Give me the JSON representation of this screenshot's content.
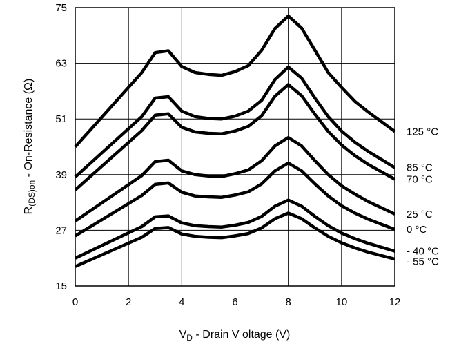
{
  "chart_data": {
    "type": "line",
    "title": "",
    "xlabel": {
      "main": "V",
      "sub": "D",
      "rest": " - Drain V oltage (V)"
    },
    "ylabel": {
      "main": "R",
      "sub": "(DS)on",
      "rest": " - On-Resistance (Ω)"
    },
    "xlim": [
      0,
      12
    ],
    "ylim": [
      15,
      75
    ],
    "xticks": [
      "0",
      "2",
      "4",
      "6",
      "8",
      "10",
      "12"
    ],
    "yticks": [
      "15",
      "27",
      "39",
      "51",
      "63",
      "75"
    ],
    "xtick_values": [
      0,
      2,
      4,
      6,
      8,
      10,
      12
    ],
    "ytick_values": [
      15,
      27,
      39,
      51,
      63,
      75
    ],
    "grid": true,
    "legend": "none",
    "x": [
      0,
      2.5,
      3,
      3.5,
      4,
      4.5,
      5,
      5.5,
      6,
      6.5,
      7,
      7.5,
      8,
      8.5,
      9,
      9.5,
      10,
      10.5,
      11,
      12
    ],
    "series": [
      {
        "name": "125 °C",
        "values": [
          45.0,
          61.0,
          65.3,
          65.7,
          62.3,
          61.0,
          60.6,
          60.4,
          61.2,
          62.5,
          65.8,
          70.5,
          73.2,
          70.6,
          65.8,
          61.0,
          57.8,
          54.8,
          52.5,
          48.3
        ]
      },
      {
        "name": "85 °C",
        "values": [
          38.5,
          51.5,
          55.5,
          55.8,
          52.7,
          51.5,
          51.1,
          51.0,
          51.6,
          52.7,
          55.0,
          59.5,
          62.2,
          59.8,
          55.5,
          51.5,
          48.4,
          46.0,
          44.0,
          40.5
        ]
      },
      {
        "name": "70 °C",
        "values": [
          35.7,
          48.5,
          51.8,
          52.1,
          49.2,
          48.2,
          47.9,
          47.8,
          48.4,
          49.4,
          51.7,
          55.9,
          58.4,
          56.0,
          52.0,
          48.3,
          45.4,
          43.1,
          41.2,
          38.0
        ]
      },
      {
        "name": "25 °C",
        "values": [
          29.0,
          38.8,
          41.8,
          42.1,
          39.8,
          39.0,
          38.7,
          38.6,
          39.2,
          40.0,
          42.0,
          45.2,
          47.0,
          45.2,
          42.0,
          39.0,
          36.6,
          34.8,
          33.2,
          30.5
        ]
      },
      {
        "name": "0 °C",
        "values": [
          25.8,
          34.5,
          36.9,
          37.2,
          35.2,
          34.4,
          34.2,
          34.1,
          34.6,
          35.3,
          37.0,
          39.8,
          41.5,
          39.8,
          37.0,
          34.4,
          32.3,
          30.7,
          29.4,
          27.2
        ]
      },
      {
        "name": "- 40 °C",
        "values": [
          21.0,
          27.8,
          29.9,
          30.1,
          28.6,
          28.0,
          27.8,
          27.7,
          28.1,
          28.7,
          30.0,
          32.2,
          33.5,
          32.2,
          30.0,
          28.0,
          26.4,
          25.2,
          24.2,
          22.5
        ]
      },
      {
        "name": "- 55 °C",
        "values": [
          19.2,
          25.5,
          27.4,
          27.6,
          26.2,
          25.7,
          25.5,
          25.4,
          25.8,
          26.3,
          27.5,
          29.5,
          30.7,
          29.5,
          27.5,
          25.7,
          24.3,
          23.2,
          22.3,
          20.8
        ]
      }
    ],
    "series_label_values": [
      48.3,
      40.5,
      38.0,
      30.5,
      27.2,
      22.5,
      20.3
    ]
  }
}
